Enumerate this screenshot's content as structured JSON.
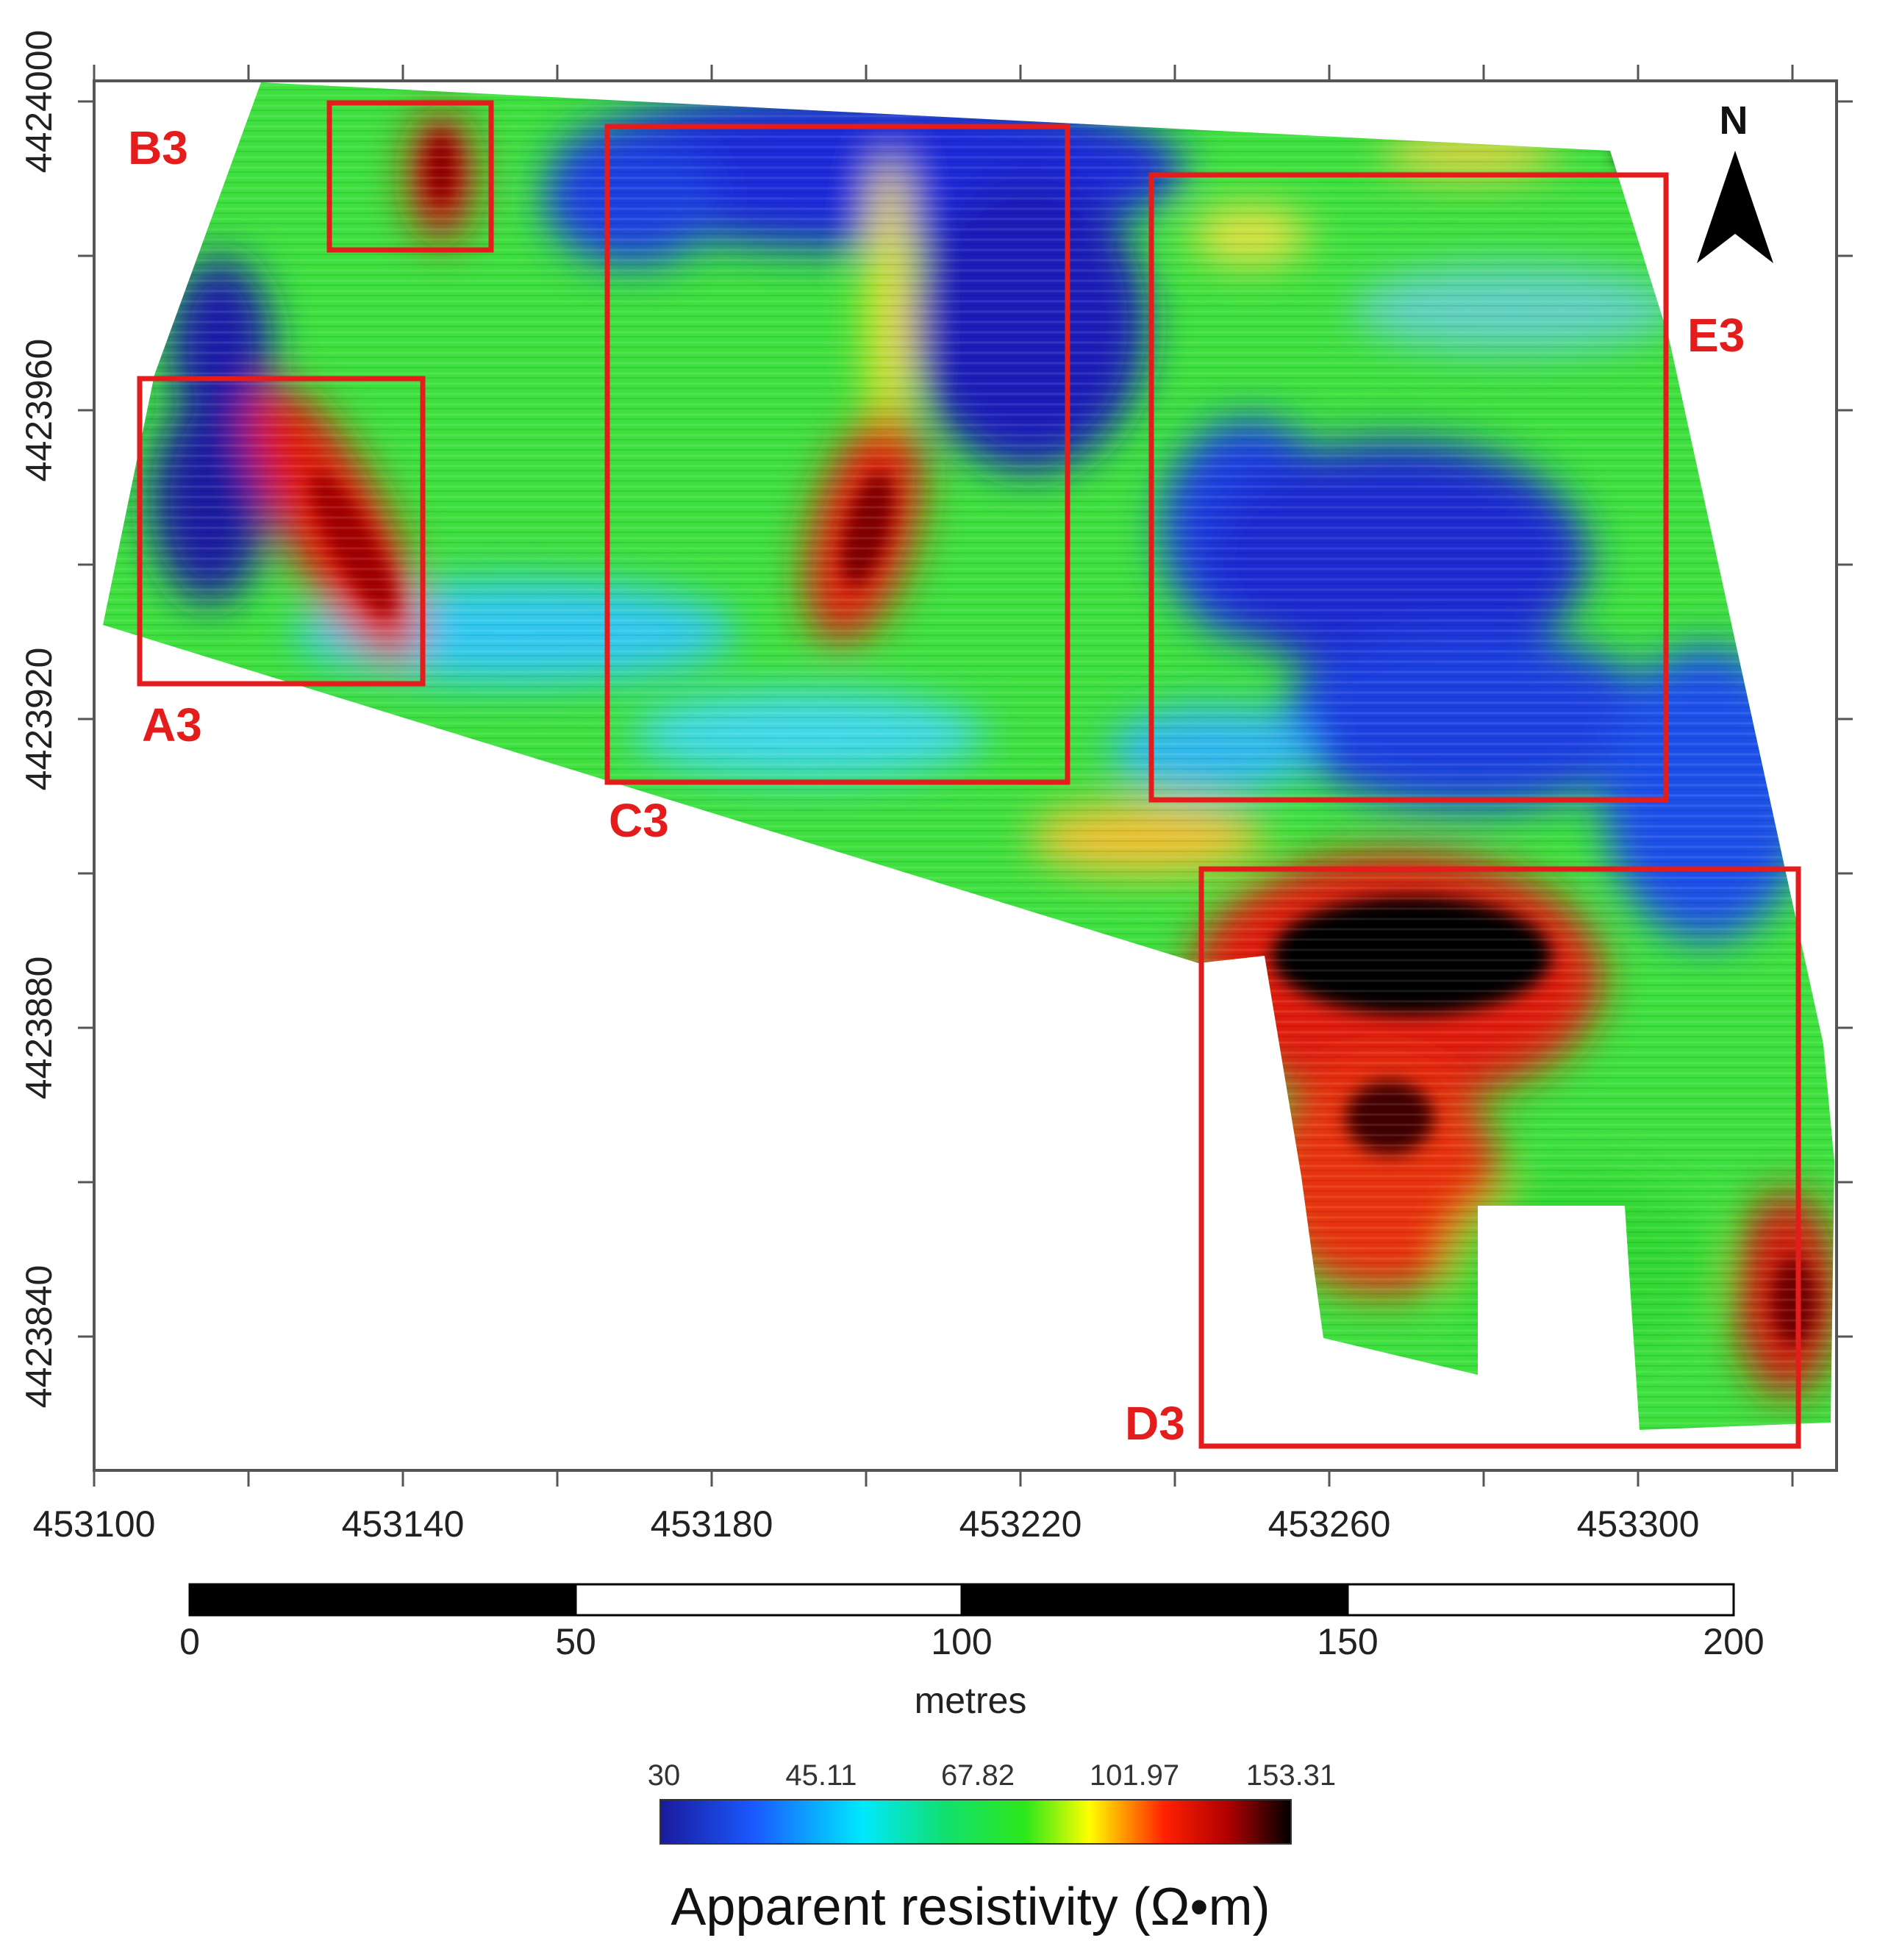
{
  "map": {
    "x_ticks": [
      "453100",
      "453140",
      "453180",
      "453220",
      "453260",
      "453300"
    ],
    "y_ticks": [
      "4424000",
      "4423960",
      "4423920",
      "4423880",
      "4423840"
    ],
    "north_label": "N",
    "zones": [
      {
        "id": "A3",
        "label": "A3"
      },
      {
        "id": "B3",
        "label": "B3"
      },
      {
        "id": "C3",
        "label": "C3"
      },
      {
        "id": "D3",
        "label": "D3"
      },
      {
        "id": "E3",
        "label": "E3"
      }
    ],
    "colors": {
      "zone_outline": "#e41c1c",
      "low": "#1a1aa8",
      "mid": "#22dd22",
      "high": "#e02010",
      "max": "#000000"
    }
  },
  "scale_bar": {
    "ticks": [
      "0",
      "50",
      "100",
      "150",
      "200"
    ],
    "unit": "metres"
  },
  "colorbar": {
    "ticks": [
      "30",
      "45.11",
      "67.82",
      "101.97",
      "153.31"
    ],
    "title": "Apparent resistivity (Ω•m)"
  }
}
